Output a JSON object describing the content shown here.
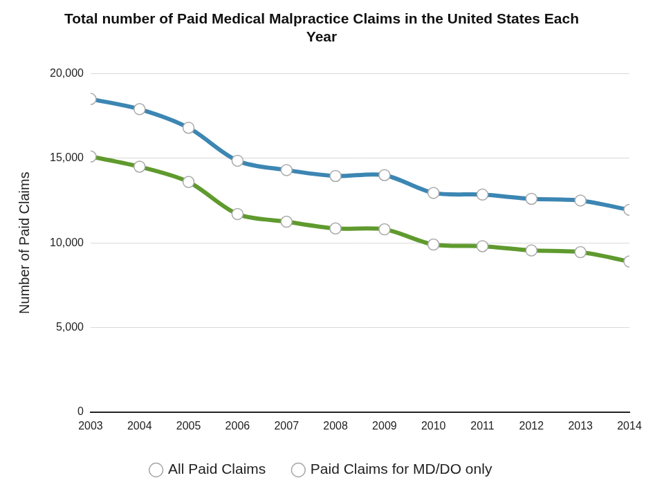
{
  "chart_data": {
    "type": "line",
    "title": "Total number of Paid Medical Malpractice Claims in the United States Each Year",
    "y_label": "Number of Paid Claims",
    "categories": [
      "2003",
      "2004",
      "2005",
      "2006",
      "2007",
      "2008",
      "2009",
      "2010",
      "2011",
      "2012",
      "2013",
      "2014"
    ],
    "series": [
      {
        "name": "All Paid Claims",
        "color": "#3c86b3",
        "values": [
          18500,
          17900,
          16800,
          14850,
          14300,
          13950,
          14000,
          12950,
          12850,
          12600,
          12500,
          11950
        ]
      },
      {
        "name": "Paid Claims for MD/DO only",
        "color": "#5f9a2e",
        "values": [
          15100,
          14500,
          13600,
          11700,
          11250,
          10850,
          10800,
          9900,
          9800,
          9550,
          9450,
          8900
        ]
      }
    ],
    "ylim": [
      0,
      20000
    ],
    "yticks": [
      0,
      {
        "value": 5000,
        "label": "5,000"
      },
      {
        "value": 10000,
        "label": "10,000"
      },
      {
        "value": 15000,
        "label": "15,000"
      },
      {
        "value": 20000,
        "label": "20,000"
      }
    ],
    "grid": true,
    "legend": "bottom",
    "marker": "circle"
  }
}
